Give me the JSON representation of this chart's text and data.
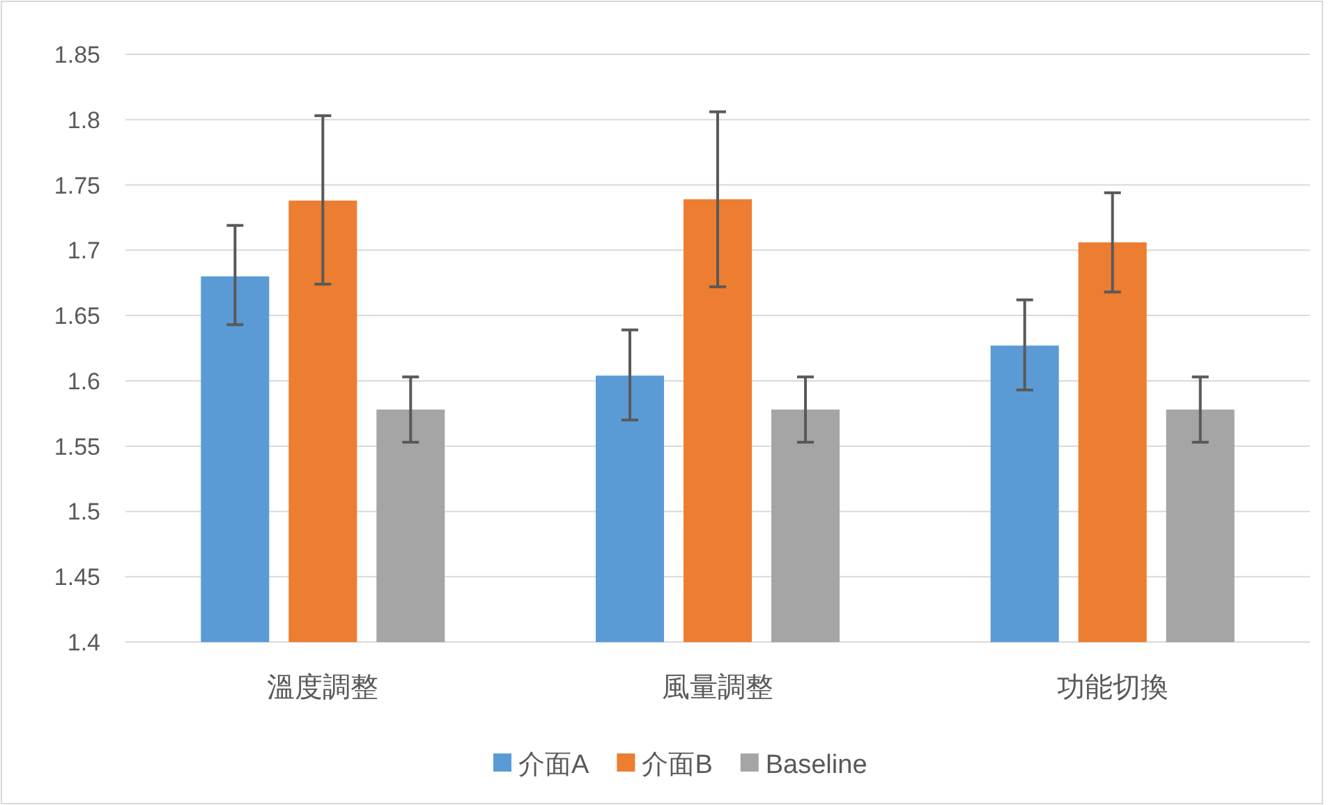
{
  "chart_data": {
    "type": "bar",
    "categories": [
      "溫度調整",
      "風量調整",
      "功能切換"
    ],
    "series": [
      {
        "name": "介面A",
        "color": "#5b9bd5",
        "values": [
          1.68,
          1.604,
          1.627
        ],
        "errors": [
          [
            1.643,
            1.719
          ],
          [
            1.57,
            1.639
          ],
          [
            1.593,
            1.662
          ]
        ]
      },
      {
        "name": "介面B",
        "color": "#ed7d31",
        "values": [
          1.738,
          1.739,
          1.706
        ],
        "errors": [
          [
            1.674,
            1.803
          ],
          [
            1.672,
            1.806
          ],
          [
            1.668,
            1.744
          ]
        ]
      },
      {
        "name": "Baseline",
        "color": "#a5a5a5",
        "values": [
          1.578,
          1.578,
          1.578
        ],
        "errors": [
          [
            1.553,
            1.603
          ],
          [
            1.553,
            1.603
          ],
          [
            1.553,
            1.603
          ]
        ]
      }
    ],
    "ylim": [
      1.4,
      1.85
    ],
    "yticks": [
      1.4,
      1.45,
      1.5,
      1.55,
      1.6,
      1.65,
      1.7,
      1.75,
      1.8,
      1.85
    ],
    "grid": "y",
    "legend": "bottom"
  }
}
